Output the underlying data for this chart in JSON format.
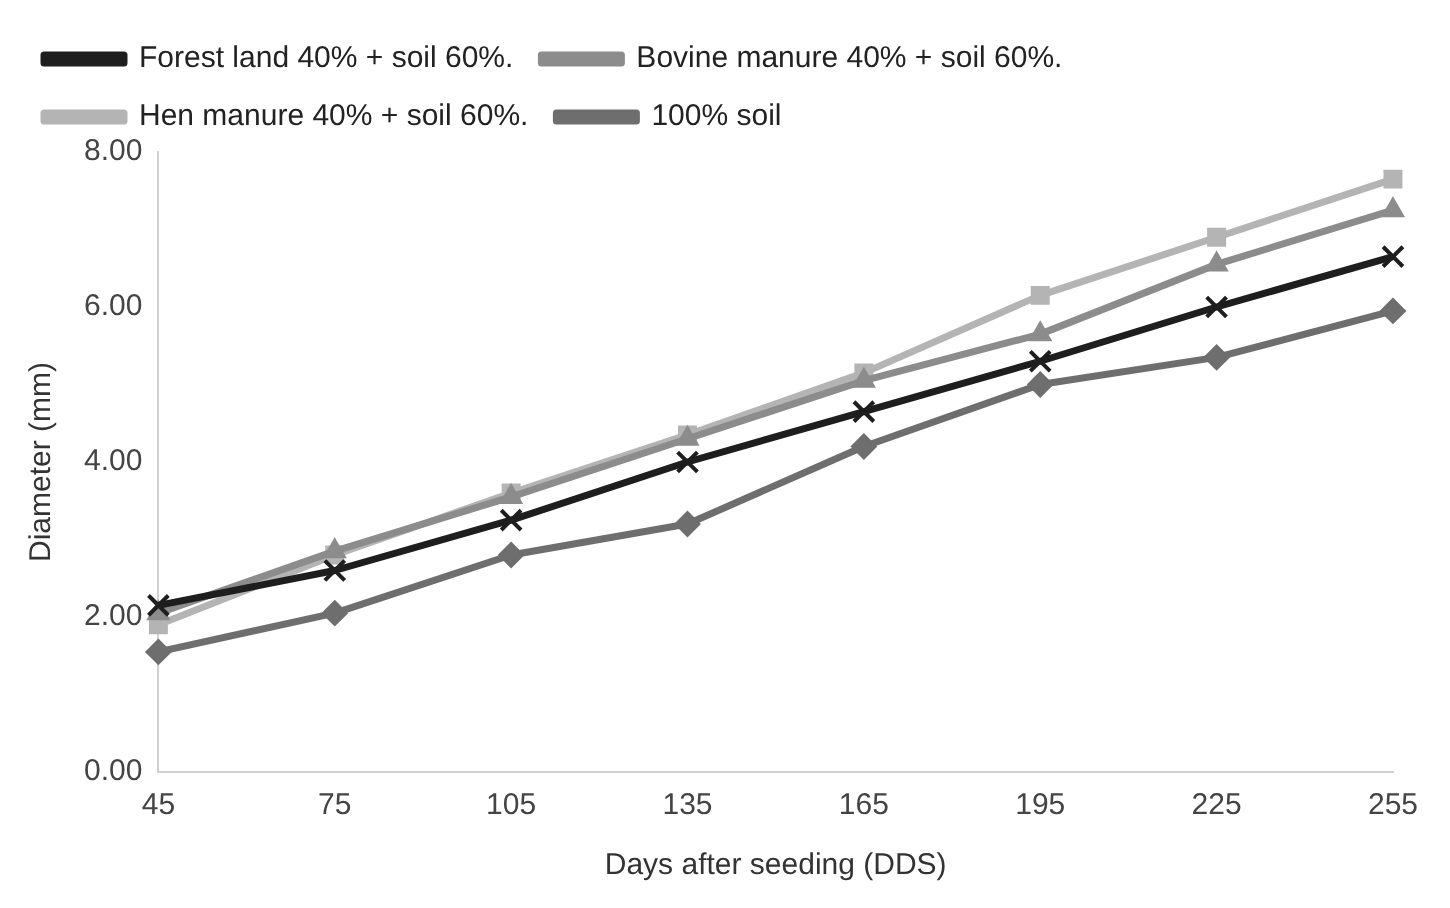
{
  "chart_data": {
    "type": "line",
    "xlabel": "Days after seeding (DDS)",
    "ylabel": "Diameter (mm)",
    "categories": [
      "45",
      "75",
      "105",
      "135",
      "165",
      "195",
      "225",
      "255"
    ],
    "ylim": [
      0,
      8
    ],
    "yticks": [
      {
        "value": 0,
        "label": "0.00"
      },
      {
        "value": 2,
        "label": "2.00"
      },
      {
        "value": 4,
        "label": "4.00"
      },
      {
        "value": 6,
        "label": "6.00"
      },
      {
        "value": 8,
        "label": "8.00"
      }
    ],
    "grid": false,
    "legend": "top",
    "series": [
      {
        "name": "100% soil",
        "color": "#6e6e6e",
        "marker": "diamond",
        "values": [
          1.55,
          2.05,
          2.8,
          3.2,
          4.2,
          5.0,
          5.35,
          5.95
        ]
      },
      {
        "name": "Hen manure 40% + soil 60%.",
        "color": "#b4b4b4",
        "marker": "square",
        "values": [
          1.9,
          2.8,
          3.6,
          4.35,
          5.15,
          6.15,
          6.9,
          7.65
        ]
      },
      {
        "name": "Bovine manure 40% + soil 60%.",
        "color": "#8c8c8c",
        "marker": "triangle",
        "values": [
          2.05,
          2.85,
          3.55,
          4.3,
          5.05,
          5.65,
          6.55,
          7.25
        ]
      },
      {
        "name": "Forest land 40% + soil 60%.",
        "color": "#1e1e1e",
        "marker": "cross",
        "values": [
          2.15,
          2.6,
          3.25,
          4.0,
          4.65,
          5.3,
          6.0,
          6.65
        ]
      }
    ]
  }
}
